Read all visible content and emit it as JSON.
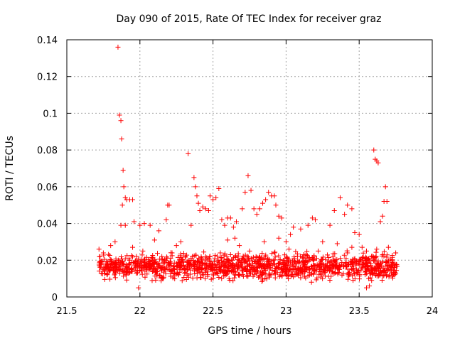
{
  "chart_data": {
    "type": "scatter",
    "title": "Day 090 of 2015, Rate Of TEC Index for receiver graz",
    "xlabel": "GPS time / hours",
    "ylabel": "ROTI / TECUs",
    "xlim": [
      21.5,
      24
    ],
    "ylim": [
      0,
      0.14
    ],
    "x_ticks": [
      "21.5",
      "22",
      "22.5",
      "23",
      "23.5",
      "24"
    ],
    "y_ticks": [
      "0",
      "0.02",
      "0.04",
      "0.06",
      "0.08",
      "0.1",
      "0.12",
      "0.14"
    ],
    "grid": true,
    "marker": "plus",
    "color": "#ff0000",
    "series": [
      {
        "name": "ROTI",
        "points": [
          [
            21.85,
            0.136
          ],
          [
            21.86,
            0.099
          ],
          [
            21.87,
            0.096
          ],
          [
            21.875,
            0.086
          ],
          [
            21.885,
            0.069
          ],
          [
            21.89,
            0.06
          ],
          [
            21.9,
            0.054
          ],
          [
            21.91,
            0.053
          ],
          [
            21.93,
            0.053
          ],
          [
            21.95,
            0.053
          ],
          [
            21.88,
            0.05
          ],
          [
            21.87,
            0.039
          ],
          [
            21.9,
            0.039
          ],
          [
            21.96,
            0.041
          ],
          [
            22.0,
            0.039
          ],
          [
            22.03,
            0.04
          ],
          [
            21.99,
            0.005
          ],
          [
            22.18,
            0.042
          ],
          [
            22.19,
            0.05
          ],
          [
            22.2,
            0.05
          ],
          [
            22.33,
            0.078
          ],
          [
            22.35,
            0.039
          ],
          [
            22.37,
            0.065
          ],
          [
            22.38,
            0.06
          ],
          [
            22.39,
            0.055
          ],
          [
            22.4,
            0.051
          ],
          [
            22.41,
            0.047
          ],
          [
            22.43,
            0.049
          ],
          [
            22.45,
            0.048
          ],
          [
            22.47,
            0.047
          ],
          [
            22.48,
            0.055
          ],
          [
            22.5,
            0.053
          ],
          [
            22.52,
            0.054
          ],
          [
            22.54,
            0.059
          ],
          [
            22.56,
            0.042
          ],
          [
            22.58,
            0.039
          ],
          [
            22.6,
            0.043
          ],
          [
            22.62,
            0.043
          ],
          [
            22.64,
            0.038
          ],
          [
            22.66,
            0.041
          ],
          [
            22.7,
            0.048
          ],
          [
            22.72,
            0.057
          ],
          [
            22.74,
            0.066
          ],
          [
            22.76,
            0.058
          ],
          [
            22.78,
            0.048
          ],
          [
            22.8,
            0.045
          ],
          [
            22.82,
            0.048
          ],
          [
            22.84,
            0.051
          ],
          [
            22.86,
            0.053
          ],
          [
            22.88,
            0.057
          ],
          [
            22.9,
            0.055
          ],
          [
            22.92,
            0.055
          ],
          [
            22.93,
            0.05
          ],
          [
            22.95,
            0.044
          ],
          [
            22.97,
            0.043
          ],
          [
            23.05,
            0.038
          ],
          [
            23.1,
            0.037
          ],
          [
            23.15,
            0.039
          ],
          [
            23.18,
            0.043
          ],
          [
            23.2,
            0.042
          ],
          [
            23.3,
            0.039
          ],
          [
            23.33,
            0.047
          ],
          [
            23.37,
            0.054
          ],
          [
            23.4,
            0.045
          ],
          [
            23.42,
            0.05
          ],
          [
            23.45,
            0.048
          ],
          [
            23.47,
            0.035
          ],
          [
            23.5,
            0.034
          ],
          [
            23.6,
            0.08
          ],
          [
            23.61,
            0.075
          ],
          [
            23.62,
            0.074
          ],
          [
            23.63,
            0.073
          ],
          [
            23.645,
            0.041
          ],
          [
            23.66,
            0.044
          ],
          [
            23.67,
            0.052
          ],
          [
            23.68,
            0.06
          ],
          [
            23.69,
            0.052
          ],
          [
            23.55,
            0.005
          ],
          [
            23.57,
            0.006
          ],
          [
            22.07,
            0.039
          ],
          [
            22.1,
            0.031
          ],
          [
            22.13,
            0.036
          ],
          [
            22.25,
            0.028
          ],
          [
            22.28,
            0.03
          ],
          [
            22.6,
            0.031
          ],
          [
            22.65,
            0.032
          ],
          [
            22.68,
            0.028
          ],
          [
            22.85,
            0.03
          ],
          [
            22.95,
            0.032
          ],
          [
            23.0,
            0.03
          ],
          [
            23.03,
            0.034
          ],
          [
            23.25,
            0.03
          ],
          [
            23.35,
            0.029
          ],
          [
            23.45,
            0.027
          ],
          [
            23.52,
            0.027
          ],
          [
            21.72,
            0.026
          ],
          [
            21.75,
            0.024
          ],
          [
            21.8,
            0.028
          ],
          [
            21.83,
            0.03
          ],
          [
            21.95,
            0.027
          ],
          [
            22.02,
            0.025
          ],
          [
            22.15,
            0.022
          ],
          [
            22.22,
            0.024
          ],
          [
            22.35,
            0.021
          ],
          [
            22.45,
            0.022
          ],
          [
            22.55,
            0.024
          ],
          [
            22.62,
            0.023
          ],
          [
            22.75,
            0.025
          ],
          [
            22.82,
            0.022
          ],
          [
            22.92,
            0.024
          ],
          [
            23.02,
            0.026
          ],
          [
            23.12,
            0.023
          ],
          [
            23.22,
            0.025
          ],
          [
            23.32,
            0.022
          ],
          [
            23.42,
            0.024
          ],
          [
            23.55,
            0.025
          ],
          [
            23.62,
            0.026
          ],
          [
            23.7,
            0.027
          ],
          [
            23.75,
            0.024
          ]
        ]
      }
    ],
    "dense_band": {
      "x_range": [
        21.72,
        23.76
      ],
      "y_range": [
        0.007,
        0.026
      ],
      "note": "dense cluster of points"
    }
  }
}
